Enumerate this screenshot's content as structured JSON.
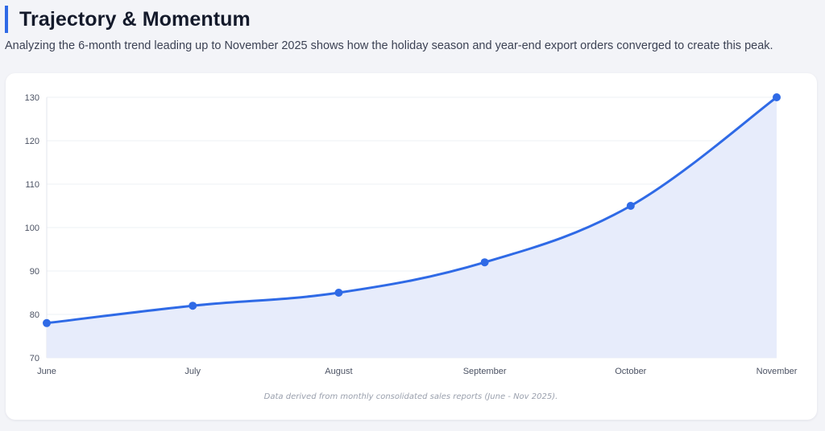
{
  "header": {
    "title": "Trajectory & Momentum",
    "subtitle": "Analyzing the 6-month trend leading up to November 2025 shows how the holiday season and year-end export orders converged to create this peak."
  },
  "colors": {
    "accent": "#2f6ae6",
    "line": "#2f6ae6",
    "area_fill": "#e7ecfb",
    "grid": "#eef0f4"
  },
  "chart_data": {
    "type": "area",
    "title": "",
    "xlabel": "",
    "ylabel": "",
    "categories": [
      "June",
      "July",
      "August",
      "September",
      "October",
      "November"
    ],
    "series": [
      {
        "values": [
          78,
          82,
          85,
          92,
          105,
          130
        ]
      }
    ],
    "ylim": [
      70,
      130
    ],
    "yticks": [
      70,
      80,
      90,
      100,
      110,
      120,
      130
    ],
    "ytick_labels": [
      "70",
      "80",
      "90",
      "100",
      "110",
      "120",
      "130"
    ],
    "grid": true,
    "legend": "none",
    "smooth": true,
    "markers": true
  },
  "footnote": "Data derived from monthly consolidated sales reports (June - Nov 2025)."
}
